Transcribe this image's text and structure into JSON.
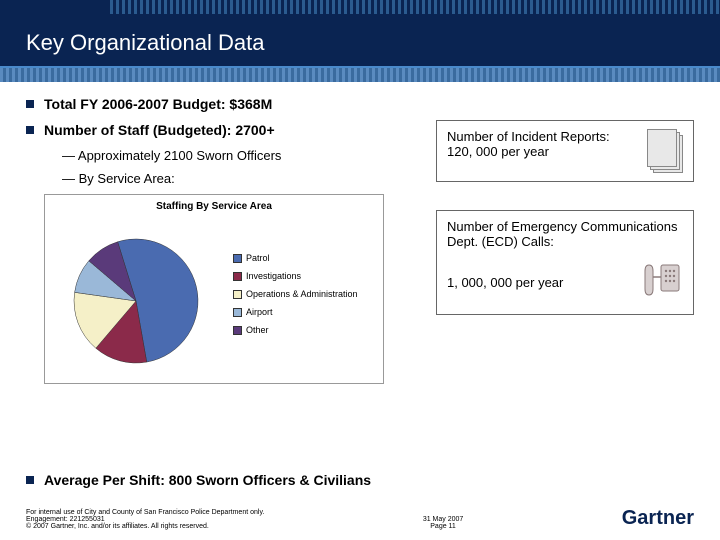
{
  "header": {
    "title": "Key Organizational Data"
  },
  "bullets": {
    "b1": "Total  FY 2006-2007 Budget: $368M",
    "b2": "Number of Staff (Budgeted): 2700+",
    "s1": "Approximately 2100 Sworn Officers",
    "s2": "By Service Area:",
    "b3": "Average Per Shift: 800 Sworn Officers & Civilians"
  },
  "chart": {
    "title": "Staffing By Service Area",
    "type": "pie",
    "slices": [
      {
        "label": "Patrol",
        "value": 52,
        "color": "#4a6bb0"
      },
      {
        "label": "Investigations",
        "value": 14,
        "color": "#8b2a4a"
      },
      {
        "label": "Operations & Administration",
        "value": 16,
        "color": "#f5f0c8"
      },
      {
        "label": "Airport",
        "value": 9,
        "color": "#9ab8d8"
      },
      {
        "label": "Other",
        "value": 9,
        "color": "#5a3a7a"
      }
    ],
    "background": "#ffffff",
    "border_color": "#999999",
    "title_fontsize": 10,
    "legend_fontsize": 9
  },
  "infobox1": {
    "line1": "Number of Incident Reports:",
    "line2": "120, 000 per year"
  },
  "infobox2": {
    "line1": "Number of Emergency Communications Dept. (ECD) Calls:",
    "line2": "1, 000, 000 per year"
  },
  "footer": {
    "left1": "For internal use of City and County of San Francisco Police Department only.",
    "left2": "Engagement: 221255031",
    "left3": "© 2007 Gartner, Inc. and/or its affiliates. All rights reserved.",
    "center1": "31 May 2007",
    "center2": "Page 11",
    "logo": "Gartner"
  },
  "colors": {
    "header_bg": "#0a2452",
    "accent": "#4a8acb"
  }
}
